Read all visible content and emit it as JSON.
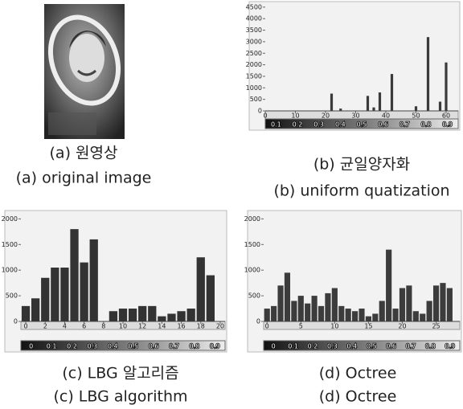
{
  "image_panel": {
    "caption": [
      "(a) 원영상",
      "(a) original image"
    ]
  },
  "chart_data": [
    {
      "type": "bar",
      "caption": [
        "(b) 균일양자화",
        "(b) uniform quatization"
      ],
      "color": "#3a3a3a",
      "x": [
        22,
        25,
        34,
        36,
        38,
        42,
        50,
        54,
        58,
        60
      ],
      "values": [
        750,
        100,
        650,
        150,
        800,
        1600,
        200,
        3200,
        400,
        2100
      ],
      "xlim": [
        0,
        64
      ],
      "xticks": [
        0,
        10,
        20,
        30,
        40,
        50,
        60
      ],
      "ylim": [
        0,
        4600
      ],
      "yticks": [
        0,
        500,
        1000,
        1500,
        2000,
        2500,
        3000,
        3500,
        4000,
        4500
      ],
      "colorbar_ticks": [
        0.1,
        0.2,
        0.3,
        0.4,
        0.5,
        0.6,
        0.7,
        0.8,
        0.9
      ]
    },
    {
      "type": "bar",
      "caption": [
        "(c) LBG 알고리즘",
        "(c) LBG algorithm"
      ],
      "color": "#333333",
      "x": [
        0,
        1,
        2,
        3,
        4,
        5,
        6,
        7,
        9,
        10,
        11,
        12,
        13,
        14,
        15,
        16,
        17,
        18,
        19
      ],
      "values": [
        300,
        450,
        850,
        1050,
        1050,
        1800,
        1150,
        1600,
        200,
        250,
        250,
        300,
        300,
        100,
        150,
        200,
        250,
        1250,
        900
      ],
      "xlim": [
        -0.5,
        20.5
      ],
      "xticks": [
        0,
        2,
        4,
        6,
        8,
        10,
        12,
        14,
        16,
        18,
        20
      ],
      "ylim": [
        0,
        2100
      ],
      "yticks": [
        0,
        500,
        1000,
        1500,
        2000
      ],
      "colorbar_ticks": [
        0,
        0.1,
        0.2,
        0.3,
        0.4,
        0.5,
        0.6,
        0.7,
        0.8,
        0.9
      ]
    },
    {
      "type": "bar",
      "caption": [
        "(d) Octree",
        "(d) Octree"
      ],
      "color": "#3c3c3c",
      "x": [
        0,
        1,
        2,
        3,
        4,
        5,
        6,
        7,
        8,
        9,
        10,
        11,
        12,
        13,
        14,
        15,
        16,
        17,
        18,
        19,
        20,
        21,
        22,
        23,
        24,
        25,
        26,
        27
      ],
      "values": [
        250,
        300,
        700,
        950,
        400,
        500,
        350,
        500,
        300,
        550,
        650,
        300,
        250,
        200,
        250,
        100,
        150,
        400,
        1400,
        250,
        650,
        700,
        200,
        150,
        400,
        700,
        750,
        650
      ],
      "xlim": [
        -0.5,
        28.5
      ],
      "xticks": [
        0,
        5,
        10,
        15,
        20,
        25
      ],
      "ylim": [
        0,
        2100
      ],
      "yticks": [
        0,
        500,
        1000,
        1500,
        2000
      ],
      "colorbar_ticks": [
        0,
        0.1,
        0.2,
        0.3,
        0.4,
        0.5,
        0.6,
        0.7,
        0.8,
        0.9
      ]
    }
  ]
}
